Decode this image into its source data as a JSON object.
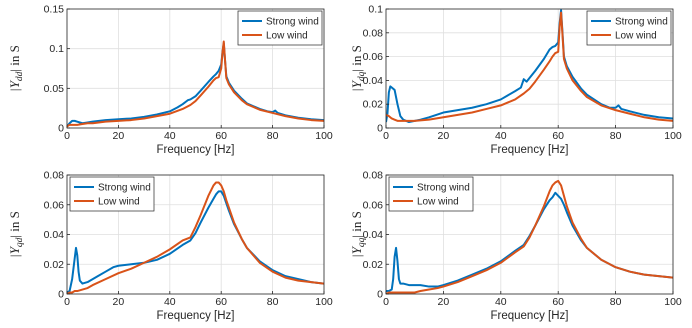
{
  "chart_data": [
    {
      "type": "line",
      "xlabel": "Frequency [Hz]",
      "ylabel": "|Y_dd| in S",
      "ylabel_main": "|Y",
      "ylabel_sub": "dd",
      "ylabel_tail": "| in S",
      "xlim": [
        0,
        100
      ],
      "ylim": [
        0,
        0.15
      ],
      "xticks": [
        0,
        20,
        40,
        60,
        80,
        100
      ],
      "yticks": [
        0,
        0.05,
        0.1,
        0.15
      ],
      "ytick_labels": [
        "0",
        "0.05",
        "0.1",
        "0.15"
      ],
      "grid": true,
      "legend_position": "top-right",
      "series": [
        {
          "name": "Strong wind",
          "color": "#0072BD",
          "x": [
            0,
            1,
            2,
            3,
            4,
            6,
            8,
            10,
            15,
            20,
            25,
            30,
            35,
            40,
            43,
            45,
            47,
            48,
            50,
            52,
            55,
            57,
            58,
            59,
            60,
            60.5,
            61,
            61.5,
            62,
            63,
            65,
            68,
            70,
            75,
            78,
            80,
            81,
            82,
            85,
            90,
            95,
            100
          ],
          "y": [
            0.002,
            0.006,
            0.009,
            0.009,
            0.008,
            0.006,
            0.007,
            0.008,
            0.01,
            0.011,
            0.012,
            0.014,
            0.017,
            0.021,
            0.026,
            0.03,
            0.035,
            0.036,
            0.04,
            0.047,
            0.058,
            0.065,
            0.068,
            0.072,
            0.08,
            0.095,
            0.107,
            0.085,
            0.065,
            0.057,
            0.047,
            0.037,
            0.031,
            0.024,
            0.021,
            0.02,
            0.022,
            0.019,
            0.016,
            0.013,
            0.011,
            0.01
          ]
        },
        {
          "name": "Low wind",
          "color": "#D95319",
          "x": [
            0,
            1,
            2,
            4,
            6,
            8,
            10,
            15,
            20,
            25,
            30,
            35,
            40,
            45,
            48,
            50,
            52,
            55,
            57,
            58,
            59,
            60,
            60.5,
            61,
            61.5,
            62,
            63,
            65,
            68,
            70,
            75,
            80,
            85,
            90,
            95,
            100
          ],
          "y": [
            0.002,
            0.004,
            0.004,
            0.004,
            0.005,
            0.006,
            0.006,
            0.008,
            0.009,
            0.01,
            0.012,
            0.015,
            0.018,
            0.024,
            0.029,
            0.034,
            0.041,
            0.052,
            0.06,
            0.063,
            0.064,
            0.075,
            0.095,
            0.109,
            0.085,
            0.063,
            0.055,
            0.045,
            0.035,
            0.03,
            0.023,
            0.019,
            0.015,
            0.012,
            0.01,
            0.009
          ]
        }
      ]
    },
    {
      "type": "line",
      "xlabel": "Frequency [Hz]",
      "ylabel": "|Y_dq| in S",
      "ylabel_main": "|Y",
      "ylabel_sub": "dq",
      "ylabel_tail": "| in S",
      "xlim": [
        0,
        100
      ],
      "ylim": [
        0,
        0.1
      ],
      "xticks": [
        0,
        20,
        40,
        60,
        80,
        100
      ],
      "yticks": [
        0,
        0.02,
        0.04,
        0.06,
        0.08,
        0.1
      ],
      "ytick_labels": [
        "0",
        "0.02",
        "0.04",
        "0.06",
        "0.08",
        "0.1"
      ],
      "grid": true,
      "legend_position": "top-right",
      "series": [
        {
          "name": "Strong wind",
          "color": "#0072BD",
          "x": [
            0,
            0.5,
            1,
            1.5,
            2,
            3,
            4,
            5,
            6,
            8,
            10,
            12,
            15,
            20,
            25,
            30,
            35,
            40,
            45,
            47,
            48,
            49,
            50,
            52,
            55,
            57,
            58,
            59,
            60,
            60.5,
            61,
            61.5,
            62,
            63,
            65,
            68,
            70,
            75,
            78,
            80,
            81,
            82,
            85,
            90,
            95,
            100
          ],
          "y": [
            0.005,
            0.012,
            0.03,
            0.035,
            0.034,
            0.032,
            0.02,
            0.01,
            0.007,
            0.005,
            0.006,
            0.007,
            0.009,
            0.013,
            0.015,
            0.017,
            0.02,
            0.024,
            0.031,
            0.034,
            0.041,
            0.039,
            0.042,
            0.048,
            0.058,
            0.066,
            0.068,
            0.069,
            0.072,
            0.088,
            0.099,
            0.08,
            0.06,
            0.052,
            0.043,
            0.033,
            0.028,
            0.02,
            0.017,
            0.017,
            0.019,
            0.016,
            0.014,
            0.011,
            0.009,
            0.008
          ]
        },
        {
          "name": "Low wind",
          "color": "#D95319",
          "x": [
            0,
            1,
            2,
            3,
            4,
            6,
            8,
            10,
            15,
            20,
            25,
            30,
            35,
            40,
            45,
            48,
            50,
            52,
            55,
            57,
            58,
            59,
            60,
            60.5,
            61,
            61.5,
            62,
            63,
            65,
            68,
            70,
            75,
            80,
            85,
            90,
            95,
            100
          ],
          "y": [
            0.011,
            0.01,
            0.008,
            0.007,
            0.006,
            0.006,
            0.006,
            0.006,
            0.007,
            0.009,
            0.011,
            0.013,
            0.016,
            0.019,
            0.024,
            0.029,
            0.033,
            0.039,
            0.049,
            0.056,
            0.06,
            0.063,
            0.064,
            0.085,
            0.097,
            0.078,
            0.058,
            0.05,
            0.04,
            0.031,
            0.026,
            0.019,
            0.015,
            0.012,
            0.009,
            0.007,
            0.006
          ]
        }
      ]
    },
    {
      "type": "line",
      "xlabel": "Frequency [Hz]",
      "ylabel": "|Y_qd| in S",
      "ylabel_main": "|Y",
      "ylabel_sub": "qd",
      "ylabel_tail": "| in S",
      "xlim": [
        0,
        100
      ],
      "ylim": [
        0,
        0.08
      ],
      "xticks": [
        0,
        20,
        40,
        60,
        80,
        100
      ],
      "yticks": [
        0,
        0.02,
        0.04,
        0.06,
        0.08
      ],
      "ytick_labels": [
        "0",
        "0.02",
        "0.04",
        "0.06",
        "0.08"
      ],
      "grid": true,
      "legend_position": "top-left",
      "series": [
        {
          "name": "Strong wind",
          "color": "#0072BD",
          "x": [
            0,
            1,
            2,
            3,
            3.5,
            4,
            4.5,
            5,
            6,
            8,
            10,
            12,
            15,
            18,
            20,
            25,
            30,
            35,
            40,
            45,
            48,
            50,
            52,
            55,
            57,
            58,
            59,
            60,
            61,
            62,
            63,
            65,
            68,
            70,
            75,
            80,
            85,
            90,
            95,
            100
          ],
          "y": [
            0.001,
            0.002,
            0.01,
            0.024,
            0.031,
            0.026,
            0.015,
            0.009,
            0.007,
            0.008,
            0.01,
            0.012,
            0.015,
            0.018,
            0.019,
            0.02,
            0.021,
            0.023,
            0.027,
            0.033,
            0.036,
            0.041,
            0.048,
            0.058,
            0.064,
            0.067,
            0.069,
            0.069,
            0.066,
            0.061,
            0.056,
            0.047,
            0.037,
            0.031,
            0.022,
            0.016,
            0.012,
            0.01,
            0.008,
            0.007
          ]
        },
        {
          "name": "Low wind",
          "color": "#D95319",
          "x": [
            0,
            1,
            2,
            3,
            4,
            6,
            8,
            10,
            15,
            20,
            25,
            30,
            35,
            40,
            45,
            48,
            50,
            52,
            55,
            57,
            58,
            59,
            60,
            61,
            62,
            63,
            65,
            68,
            70,
            75,
            80,
            85,
            90,
            95,
            100
          ],
          "y": [
            0.0,
            0.001,
            0.001,
            0.002,
            0.002,
            0.003,
            0.004,
            0.006,
            0.01,
            0.014,
            0.017,
            0.021,
            0.025,
            0.03,
            0.036,
            0.038,
            0.045,
            0.053,
            0.066,
            0.073,
            0.075,
            0.075,
            0.073,
            0.069,
            0.063,
            0.058,
            0.048,
            0.037,
            0.031,
            0.021,
            0.015,
            0.011,
            0.009,
            0.008,
            0.007
          ]
        }
      ]
    },
    {
      "type": "line",
      "xlabel": "Frequency [Hz]",
      "ylabel": "|Y_qq| in S",
      "ylabel_main": "|Y",
      "ylabel_sub": "qq",
      "ylabel_tail": "| in S",
      "xlim": [
        0,
        100
      ],
      "ylim": [
        0,
        0.08
      ],
      "xticks": [
        0,
        20,
        40,
        60,
        80,
        100
      ],
      "yticks": [
        0,
        0.02,
        0.04,
        0.06,
        0.08
      ],
      "ytick_labels": [
        "0",
        "0.02",
        "0.04",
        "0.06",
        "0.08"
      ],
      "grid": true,
      "legend_position": "top-left",
      "series": [
        {
          "name": "Strong wind",
          "color": "#0072BD",
          "x": [
            0,
            1,
            2,
            2.5,
            3,
            3.5,
            4,
            4.5,
            5,
            6,
            8,
            10,
            12,
            15,
            18,
            20,
            25,
            30,
            35,
            40,
            45,
            48,
            50,
            52,
            55,
            57,
            58,
            59,
            60,
            61,
            62,
            63,
            65,
            68,
            70,
            75,
            80,
            85,
            90,
            95,
            100
          ],
          "y": [
            0.002,
            0.002,
            0.003,
            0.01,
            0.025,
            0.031,
            0.022,
            0.01,
            0.007,
            0.007,
            0.006,
            0.006,
            0.006,
            0.005,
            0.005,
            0.006,
            0.009,
            0.013,
            0.017,
            0.022,
            0.029,
            0.033,
            0.039,
            0.046,
            0.057,
            0.063,
            0.065,
            0.068,
            0.066,
            0.064,
            0.06,
            0.055,
            0.046,
            0.036,
            0.031,
            0.023,
            0.018,
            0.015,
            0.013,
            0.012,
            0.011
          ]
        },
        {
          "name": "Low wind",
          "color": "#D95319",
          "x": [
            0,
            1,
            2,
            3,
            4,
            6,
            8,
            10,
            12,
            15,
            18,
            20,
            25,
            30,
            35,
            40,
            45,
            48,
            50,
            52,
            55,
            57,
            58,
            59,
            60,
            61,
            62,
            63,
            65,
            68,
            70,
            75,
            80,
            85,
            90,
            95,
            100
          ],
          "y": [
            0.0,
            0.001,
            0.001,
            0.001,
            0.001,
            0.001,
            0.001,
            0.001,
            0.002,
            0.003,
            0.004,
            0.005,
            0.008,
            0.012,
            0.016,
            0.021,
            0.028,
            0.032,
            0.038,
            0.046,
            0.059,
            0.069,
            0.073,
            0.075,
            0.076,
            0.073,
            0.066,
            0.059,
            0.048,
            0.037,
            0.031,
            0.023,
            0.018,
            0.015,
            0.013,
            0.012,
            0.011
          ]
        }
      ]
    }
  ]
}
